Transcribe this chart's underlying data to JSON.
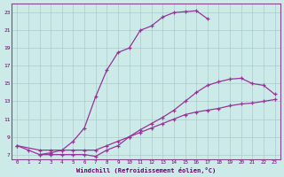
{
  "bg_color": "#cceae8",
  "grid_color": "#aacccc",
  "line_color": "#993399",
  "xlabel": "Windchill (Refroidissement éolien,°C)",
  "xlabel_color": "#660066",
  "tick_color": "#660066",
  "curve1_x": [
    0,
    1,
    2,
    3,
    4,
    5,
    6,
    7,
    8,
    9,
    10,
    11,
    12,
    13,
    14,
    15,
    16,
    17
  ],
  "curve1_y": [
    8.0,
    7.5,
    7.0,
    7.2,
    7.5,
    8.5,
    10.0,
    13.5,
    16.5,
    18.5,
    19.0,
    21.0,
    21.5,
    22.5,
    23.0,
    23.1,
    23.2,
    22.3
  ],
  "curve2_x": [
    2,
    3,
    4,
    5,
    6,
    7,
    8,
    9,
    10,
    11,
    12,
    13,
    14,
    15,
    16,
    17,
    18,
    19,
    20,
    21,
    22,
    23
  ],
  "curve2_y": [
    7.0,
    7.0,
    7.0,
    7.0,
    7.0,
    6.8,
    7.5,
    8.0,
    9.0,
    9.8,
    10.5,
    11.2,
    12.0,
    13.0,
    14.0,
    14.8,
    15.2,
    15.5,
    15.6,
    15.0,
    14.8,
    13.8
  ],
  "curve3_x": [
    0,
    2,
    3,
    4,
    5,
    6,
    7,
    8,
    9,
    10,
    11,
    12,
    13,
    14,
    15,
    16,
    17,
    18,
    19,
    20,
    21,
    22,
    23
  ],
  "curve3_y": [
    8.0,
    7.5,
    7.5,
    7.5,
    7.5,
    7.5,
    7.5,
    8.0,
    8.5,
    9.0,
    9.5,
    10.0,
    10.5,
    11.0,
    11.5,
    11.8,
    12.0,
    12.2,
    12.5,
    12.7,
    12.8,
    13.0,
    13.2
  ],
  "xlim": [
    -0.5,
    23.5
  ],
  "ylim": [
    6.5,
    24.0
  ],
  "xticks": [
    0,
    1,
    2,
    3,
    4,
    5,
    6,
    7,
    8,
    9,
    10,
    11,
    12,
    13,
    14,
    15,
    16,
    17,
    18,
    19,
    20,
    21,
    22,
    23
  ],
  "yticks": [
    7,
    9,
    11,
    13,
    15,
    17,
    19,
    21,
    23
  ]
}
